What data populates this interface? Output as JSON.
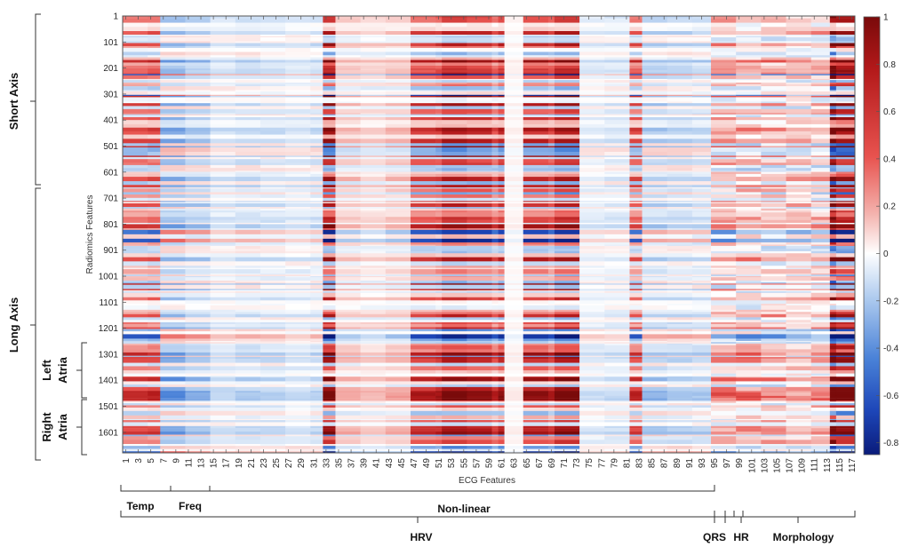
{
  "chart_data": {
    "type": "heatmap",
    "title": "",
    "xlabel": "ECG Features",
    "ylabel": "Radiomics Features",
    "x_range": [
      1,
      117
    ],
    "y_range": [
      1,
      1680
    ],
    "y_reversed": true,
    "x_ticks": [
      1,
      3,
      5,
      7,
      9,
      11,
      13,
      15,
      17,
      19,
      21,
      23,
      25,
      27,
      29,
      31,
      33,
      35,
      37,
      39,
      41,
      43,
      45,
      47,
      49,
      51,
      53,
      55,
      57,
      59,
      61,
      63,
      65,
      67,
      69,
      71,
      73,
      75,
      77,
      79,
      81,
      83,
      85,
      87,
      89,
      91,
      93,
      95,
      97,
      99,
      101,
      103,
      105,
      107,
      109,
      111,
      113,
      115,
      117
    ],
    "y_ticks": [
      1,
      101,
      201,
      301,
      401,
      501,
      601,
      701,
      801,
      901,
      1001,
      1101,
      1201,
      1301,
      1401,
      1501,
      1601
    ],
    "colorbar": {
      "min": -0.85,
      "max": 1,
      "ticks": [
        1,
        0.8,
        0.6,
        0.4,
        0.2,
        0,
        -0.2,
        -0.4,
        -0.6,
        -0.8
      ],
      "colors": {
        "negative": "#0a1b7a",
        "zero": "#ffffff",
        "positive": "#7a0a0a"
      }
    },
    "row_groups": [
      {
        "label": "Short Axis",
        "from": 1,
        "to": 650
      },
      {
        "label": "Long Axis",
        "from": 650,
        "to": 1680
      },
      {
        "label": "Left Atria",
        "from": 1260,
        "to": 1470
      },
      {
        "label": "Right Atria",
        "from": 1470,
        "to": 1680
      }
    ],
    "column_groups": [
      {
        "label": "Temp",
        "from": 1,
        "to": 8,
        "parent": "HRV"
      },
      {
        "label": "Freq",
        "from": 8,
        "to": 15,
        "parent": "HRV"
      },
      {
        "label": "Non-linear",
        "from": 15,
        "to": 95,
        "parent": "HRV"
      },
      {
        "label": "HRV",
        "from": 1,
        "to": 95
      },
      {
        "label": "QRS",
        "from": 95,
        "to": 98
      },
      {
        "label": "HR",
        "from": 98,
        "to": 100
      },
      {
        "label": "Morphology",
        "from": 100,
        "to": 117
      }
    ],
    "column_band_strengths": [
      {
        "from": 1,
        "to": 7,
        "sign": 1,
        "amp": 0.45
      },
      {
        "from": 7,
        "to": 15,
        "sign": -1,
        "amp": 0.28
      },
      {
        "from": 15,
        "to": 33,
        "sign": -1,
        "amp": 0.15
      },
      {
        "from": 33,
        "to": 35,
        "sign": 1,
        "amp": 0.65
      },
      {
        "from": 35,
        "to": 47,
        "sign": 1,
        "amp": 0.18
      },
      {
        "from": 47,
        "to": 62,
        "sign": 1,
        "amp": 0.6
      },
      {
        "from": 62,
        "to": 65,
        "sign": 0,
        "amp": 0.05
      },
      {
        "from": 65,
        "to": 74,
        "sign": 1,
        "amp": 0.62
      },
      {
        "from": 74,
        "to": 82,
        "sign": -1,
        "amp": 0.12
      },
      {
        "from": 82,
        "to": 84,
        "sign": 1,
        "amp": 0.6
      },
      {
        "from": 84,
        "to": 95,
        "sign": -1,
        "amp": 0.2
      },
      {
        "from": 95,
        "to": 114,
        "sign": 1,
        "amp": 0.25
      },
      {
        "from": 114,
        "to": 118,
        "sign": 1,
        "amp": 0.9
      }
    ]
  },
  "annotations": {
    "short_axis": "Short Axis",
    "long_axis": "Long Axis",
    "left_atria_1": "Left",
    "left_atria_2": "Atria",
    "right_atria_1": "Right",
    "right_atria_2": "Atria",
    "temp": "Temp",
    "freq": "Freq",
    "nonlinear": "Non-linear",
    "hrv": "HRV",
    "qrs": "QRS",
    "hr": "HR",
    "morphology": "Morphology"
  }
}
